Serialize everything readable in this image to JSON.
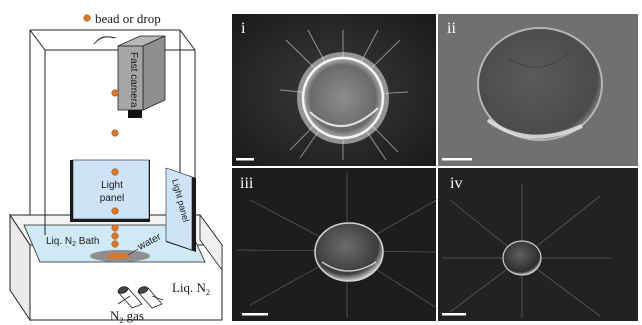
{
  "legend": {
    "label": "bead or drop",
    "bead_color": "#d9782b"
  },
  "apparatus": {
    "camera_label": "Fast camera",
    "light_panel_front": [
      "Light",
      "panel"
    ],
    "light_panel_side": "Light panel",
    "bath_label": "Liq. N",
    "bath_sub": "2",
    "bath_suffix": " Bath",
    "water_label": "water",
    "gas_label": "N",
    "gas_sub": "2",
    "gas_suffix": " gas",
    "liquid_label": "Liq. N",
    "liquid_sub": "2"
  },
  "panels": [
    {
      "roman": "i"
    },
    {
      "roman": "ii"
    },
    {
      "roman": "iii"
    },
    {
      "roman": "iv"
    }
  ],
  "colors": {
    "bath": "#cfeaf5",
    "panel_front": "#cfe3f8",
    "photo_bg": "#1c1c1c"
  }
}
